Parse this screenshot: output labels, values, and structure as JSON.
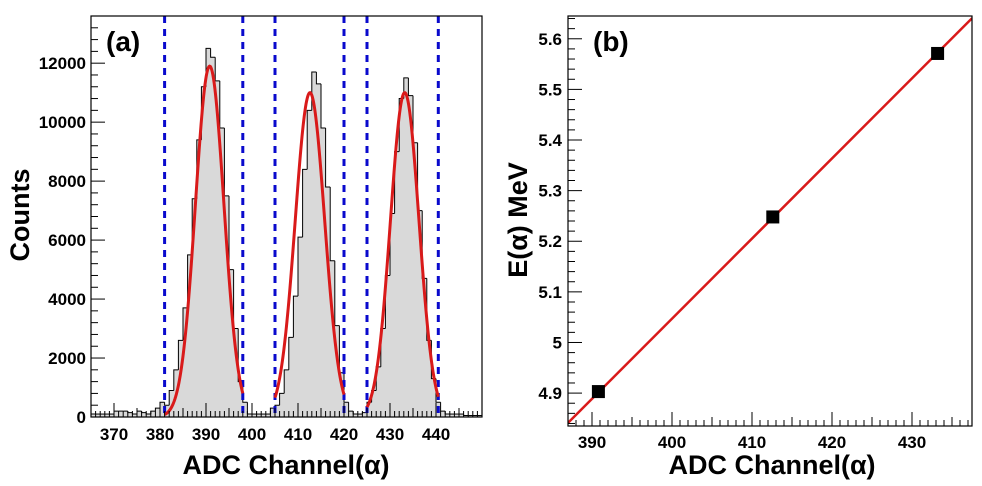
{
  "chart_data": [
    {
      "type": "histogram",
      "panel_label": "(a)",
      "xlabel": "ADC Channel(α)",
      "ylabel": "Counts",
      "xlim": [
        365,
        450
      ],
      "ylim": [
        0,
        13600
      ],
      "xticks": [
        370,
        380,
        390,
        400,
        410,
        420,
        430,
        440
      ],
      "yticks": [
        0,
        2000,
        4000,
        6000,
        8000,
        10000,
        12000
      ],
      "series": [
        {
          "kind": "histogram",
          "bin_width": 1,
          "bins": [
            [
              365,
              100
            ],
            [
              366,
              100
            ],
            [
              367,
              100
            ],
            [
              368,
              100
            ],
            [
              369,
              100
            ],
            [
              370,
              200
            ],
            [
              371,
              200
            ],
            [
              372,
              200
            ],
            [
              373,
              150
            ],
            [
              374,
              100
            ],
            [
              375,
              200
            ],
            [
              376,
              150
            ],
            [
              377,
              100
            ],
            [
              378,
              200
            ],
            [
              379,
              300
            ],
            [
              380,
              500
            ],
            [
              381,
              400
            ],
            [
              382,
              900
            ],
            [
              383,
              1600
            ],
            [
              384,
              2600
            ],
            [
              385,
              3700
            ],
            [
              386,
              5500
            ],
            [
              387,
              7400
            ],
            [
              388,
              9400
            ],
            [
              389,
              11200
            ],
            [
              390,
              12500
            ],
            [
              391,
              12200
            ],
            [
              392,
              11400
            ],
            [
              393,
              9800
            ],
            [
              394,
              7500
            ],
            [
              395,
              5000
            ],
            [
              396,
              3000
            ],
            [
              397,
              1200
            ],
            [
              398,
              500
            ],
            [
              399,
              100
            ],
            [
              400,
              100
            ],
            [
              401,
              100
            ],
            [
              402,
              100
            ],
            [
              403,
              100
            ],
            [
              404,
              300
            ],
            [
              405,
              400
            ],
            [
              406,
              800
            ],
            [
              407,
              1600
            ],
            [
              408,
              2700
            ],
            [
              409,
              4100
            ],
            [
              410,
              6100
            ],
            [
              411,
              8400
            ],
            [
              412,
              10400
            ],
            [
              413,
              11700
            ],
            [
              414,
              11300
            ],
            [
              415,
              9800
            ],
            [
              416,
              7800
            ],
            [
              417,
              5300
            ],
            [
              418,
              3100
            ],
            [
              419,
              1500
            ],
            [
              420,
              500
            ],
            [
              421,
              200
            ],
            [
              422,
              100
            ],
            [
              423,
              100
            ],
            [
              424,
              150
            ],
            [
              425,
              500
            ],
            [
              426,
              900
            ],
            [
              427,
              1700
            ],
            [
              428,
              3000
            ],
            [
              429,
              4800
            ],
            [
              430,
              6900
            ],
            [
              431,
              9000
            ],
            [
              432,
              10800
            ],
            [
              433,
              11500
            ],
            [
              434,
              10900
            ],
            [
              435,
              9300
            ],
            [
              436,
              7000
            ],
            [
              437,
              4700
            ],
            [
              438,
              2600
            ],
            [
              439,
              1300
            ],
            [
              440,
              500
            ],
            [
              441,
              200
            ],
            [
              442,
              100
            ],
            [
              443,
              100
            ],
            [
              444,
              100
            ],
            [
              445,
              100
            ],
            [
              446,
              50
            ],
            [
              447,
              50
            ],
            [
              448,
              50
            ],
            [
              449,
              50
            ]
          ],
          "color": "#000000",
          "fill": "#d9d9d9"
        },
        {
          "kind": "gaussian-fit",
          "peaks": [
            {
              "mean": 390.8,
              "sigma": 3.1,
              "amplitude": 11900,
              "range": [
                381,
                398
              ]
            },
            {
              "mean": 412.6,
              "sigma": 3.2,
              "amplitude": 11000,
              "range": [
                405,
                420
              ]
            },
            {
              "mean": 433.2,
              "sigma": 3.1,
              "amplitude": 11000,
              "range": [
                425,
                440.5
              ]
            }
          ],
          "color": "#d91a1a"
        }
      ],
      "vlines": [
        381,
        398,
        405,
        420,
        425,
        440.5
      ],
      "vline_color": "#0a0acd",
      "grid": false
    },
    {
      "type": "scatter",
      "panel_label": "(b)",
      "xlabel": "ADC Channel(α)",
      "ylabel": "E(α) MeV",
      "xlim": [
        387,
        437.5
      ],
      "ylim": [
        4.835,
        5.645
      ],
      "xticks": [
        390,
        400,
        410,
        420,
        430
      ],
      "yticks": [
        4.9,
        5,
        5.1,
        5.2,
        5.3,
        5.4,
        5.5,
        5.6
      ],
      "ytick_labels": [
        "4.9",
        "5",
        "5.1",
        "5.2",
        "5.3",
        "5.4",
        "5.5",
        "5.6"
      ],
      "series": [
        {
          "kind": "points",
          "points": [
            {
              "x": 390.8,
              "y": 4.903
            },
            {
              "x": 412.6,
              "y": 5.248
            },
            {
              "x": 433.2,
              "y": 5.571
            }
          ],
          "color": "#000000"
        },
        {
          "kind": "linear-fit",
          "slope": 0.01583,
          "intercept": -1.285,
          "color": "#d91a1a"
        }
      ],
      "grid": false
    }
  ],
  "colors": {
    "histogram_fill": "#d9d9d9",
    "fit_line": "#d91a1a",
    "range_markers": "#0a0acd"
  }
}
